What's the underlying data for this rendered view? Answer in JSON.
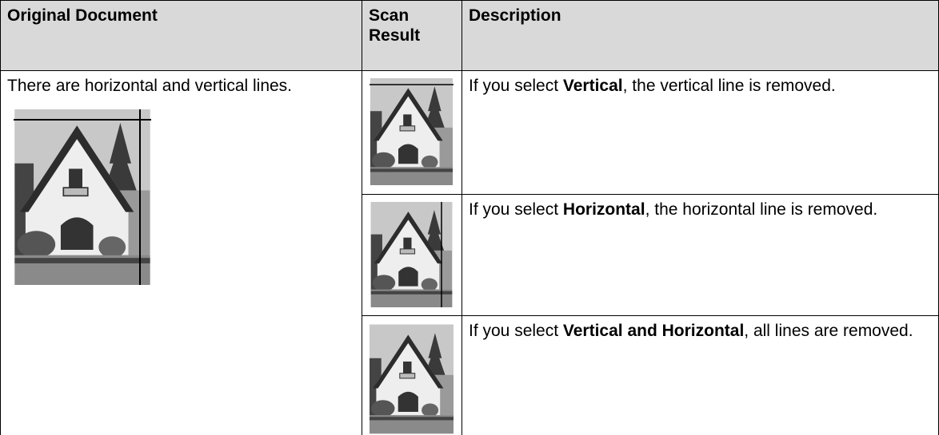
{
  "table": {
    "header": [
      "Original Document",
      "Scan Result",
      "Description"
    ],
    "original_text": "There are horizontal and vertical lines.",
    "rows": [
      {
        "prefix": "If you select",
        "bold": "Vertical",
        "suffix": ", the vertical line is removed."
      },
      {
        "prefix": "If you select",
        "bold": "Horizontal",
        "suffix": ", the horizontal line is removed."
      },
      {
        "prefix": "If you select",
        "bold": "Vertical and Horizontal",
        "suffix": ", all lines are removed."
      }
    ]
  }
}
